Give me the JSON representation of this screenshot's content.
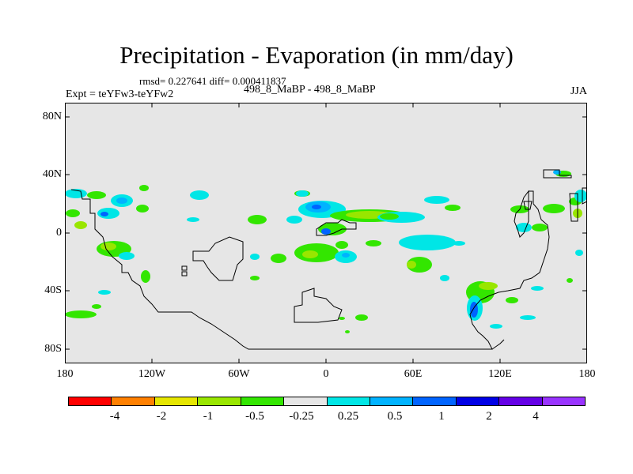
{
  "title": "Precipitation - Evaporation (in mm/day)",
  "stats": "rmsd= 0.227641 diff= 0.000411837",
  "expt": "Expt = teYFw3-teYFw2",
  "case": "498_8_MaBP - 498_8_MaBP",
  "season": "JJA",
  "map": {
    "background_color": "#e6e6e6",
    "y_ticks": [
      "80N",
      "40N",
      "0",
      "40S",
      "80S"
    ],
    "x_ticks": [
      "180",
      "120W",
      "60W",
      "0",
      "60E",
      "120E",
      "180"
    ]
  },
  "colorbar": {
    "colors": [
      "#ff0000",
      "#ff8000",
      "#e6e600",
      "#99e600",
      "#33e600",
      "#e6e6e6",
      "#00e6e6",
      "#00b3ff",
      "#0064ff",
      "#0000e6",
      "#6400e6",
      "#9933ff"
    ],
    "labels": [
      "-4",
      "-2",
      "-1",
      "-0.5",
      "-0.25",
      "0.25",
      "0.5",
      "1",
      "2",
      "4"
    ]
  }
}
